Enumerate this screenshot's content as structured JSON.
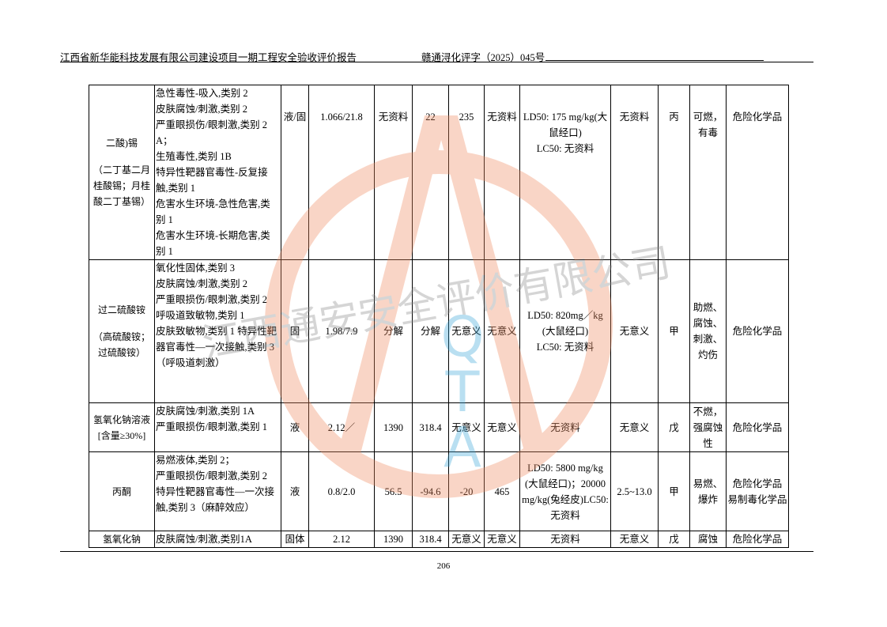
{
  "header": {
    "left": "江西省新华能科技发展有限公司建设项目一期工程安全验收评价报告",
    "right": "赣通浔化评字（2025）045号"
  },
  "watermark": {
    "company": "江西通安安全评价有限公司",
    "letters": [
      "Q",
      "T",
      "A"
    ]
  },
  "table": {
    "rows": [
      [
        [
          "二酸)锡",
          "（二丁基二月桂酸锡；月桂酸二丁基锡）"
        ],
        [
          "急性毒性-吸入,类别 2",
          "皮肤腐蚀/刺激,类别 2",
          "严重眼损伤/眼刺激,类别 2A；",
          "生殖毒性,类别 1B",
          "特异性靶器官毒性-反复接触,类别 1",
          "危害水生环境-急性危害,类别 1",
          "危害水生环境-长期危害,类别 1"
        ],
        [
          "液/固"
        ],
        [
          "1.066/21.8"
        ],
        [
          "无资料"
        ],
        [
          "22"
        ],
        [
          "235"
        ],
        [
          "无资料"
        ],
        [
          "LD50: 175 mg/kg(大鼠经口)",
          "LC50: 无资料"
        ],
        [
          "无资料"
        ],
        [
          "丙"
        ],
        [
          "可燃，有毒"
        ],
        [
          "危险化学品"
        ]
      ],
      [
        [
          "过二硫酸铵",
          "（高硫酸铵；过硫酸铵）"
        ],
        [
          "氧化性固体,类别 3",
          "皮肤腐蚀/刺激,类别 2",
          "严重眼损伤/眼刺激,类别 2",
          "呼吸道致敏物,类别 1",
          "皮肤致敏物,类别 1 特异性靶器官毒性—一次接触,类别 3（呼吸道刺激）"
        ],
        [
          "固"
        ],
        [
          "1.98/7.9"
        ],
        [
          "分解"
        ],
        [
          "分解"
        ],
        [
          "无意义"
        ],
        [
          "无意义"
        ],
        [
          "LD50: 820mg／kg(大鼠经口)",
          "LC50: 无资料"
        ],
        [
          "无意义"
        ],
        [
          "甲"
        ],
        [
          "助燃、腐蚀、刺激、灼伤"
        ],
        [
          "危险化学品"
        ]
      ],
      [
        [
          "氢氧化钠溶液[含量≥30%]"
        ],
        [
          "皮肤腐蚀/刺激,类别 1A",
          "严重眼损伤/眼刺激,类别 1"
        ],
        [
          "液"
        ],
        [
          "2.12／"
        ],
        [
          "1390"
        ],
        [
          "318.4"
        ],
        [
          "无意义"
        ],
        [
          "无意义"
        ],
        [
          "无资料"
        ],
        [
          "无意义"
        ],
        [
          "戊"
        ],
        [
          "不燃，强腐蚀性"
        ],
        [
          "危险化学品"
        ]
      ],
      [
        [
          "丙酮"
        ],
        [
          "易燃液体,类别 2；",
          "严重眼损伤/眼刺激,类别 2",
          "特异性靶器官毒性—一次接触,类别 3（麻醉效应）"
        ],
        [
          "液"
        ],
        [
          "0.8/2.0"
        ],
        [
          "56.5"
        ],
        [
          "-94.6"
        ],
        [
          "-20"
        ],
        [
          "465"
        ],
        [
          "LD50: 5800 mg/kg(大鼠经口)；20000 mg/kg(兔经皮)LC50: 无资料"
        ],
        [
          "2.5~13.0"
        ],
        [
          "甲"
        ],
        [
          "易燃、爆炸"
        ],
        [
          "危险化学品",
          "易制毒化学品"
        ]
      ],
      [
        [
          "氢氧化钠"
        ],
        [
          "皮肤腐蚀/刺激,类别1A"
        ],
        [
          "固体"
        ],
        [
          "2.12"
        ],
        [
          "1390"
        ],
        [
          "318.4"
        ],
        [
          "无意义"
        ],
        [
          "无意义"
        ],
        [
          "无资料"
        ],
        [
          "无意义"
        ],
        [
          "戊"
        ],
        [
          "腐蚀"
        ],
        [
          "危险化学品"
        ]
      ]
    ]
  },
  "footer": {
    "page": "206"
  }
}
